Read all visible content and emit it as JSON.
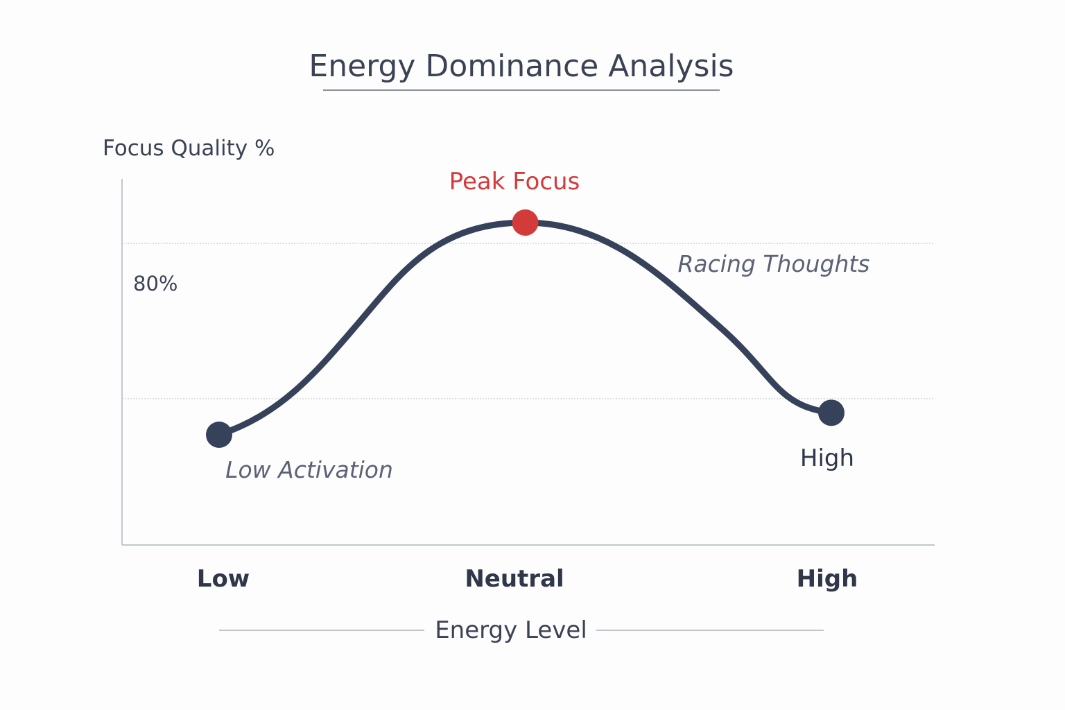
{
  "chart_data": {
    "type": "line",
    "title": "Energy Dominance Analysis",
    "xlabel": "Energy Level",
    "ylabel": "Focus Quality %",
    "categories": [
      "Low",
      "Neutral",
      "High"
    ],
    "y_tick_label": "80%",
    "ylim": [
      0,
      100
    ],
    "grid": true,
    "series": [
      {
        "values": [
          [
            0,
            38
          ],
          [
            0.5,
            96
          ],
          [
            1.0,
            44
          ]
        ],
        "color": "#36415a"
      }
    ],
    "points": [
      {
        "x": 0,
        "y": 38,
        "color": "#36415a"
      },
      {
        "x": 0.5,
        "y": 96,
        "color": "#d33b3b"
      },
      {
        "x": 1.0,
        "y": 44,
        "color": "#36415a"
      }
    ],
    "annotations": {
      "peak": "Peak Focus",
      "racing": "Racing Thoughts",
      "low_activation": "Low Activation",
      "high": "High"
    }
  }
}
